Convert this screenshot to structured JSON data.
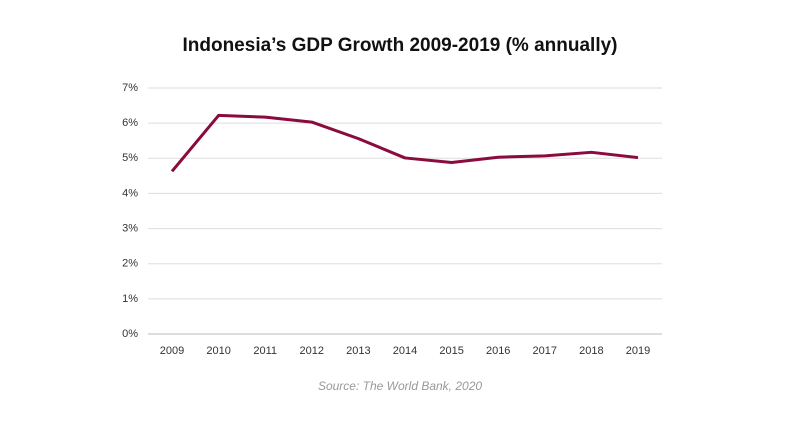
{
  "chart_data": {
    "type": "line",
    "title": "Indonesia’s GDP Growth 2009-2019 (% annually)",
    "source": "Source: The World Bank, 2020",
    "categories": [
      "2009",
      "2010",
      "2011",
      "2012",
      "2013",
      "2014",
      "2015",
      "2016",
      "2017",
      "2018",
      "2019"
    ],
    "series": [
      {
        "name": "GDP growth",
        "color": "#8a0b3d",
        "values": [
          4.63,
          6.22,
          6.17,
          6.03,
          5.56,
          5.01,
          4.88,
          5.03,
          5.07,
          5.17,
          5.02
        ]
      }
    ],
    "ylim": [
      0,
      7
    ],
    "yticks": [
      {
        "value": 0,
        "label": "0%"
      },
      {
        "value": 1,
        "label": "1%"
      },
      {
        "value": 2,
        "label": "2%"
      },
      {
        "value": 3,
        "label": "3%"
      },
      {
        "value": 4,
        "label": "4%"
      },
      {
        "value": 5,
        "label": "5%"
      },
      {
        "value": 6,
        "label": "6%"
      },
      {
        "value": 7,
        "label": "7%"
      }
    ],
    "grid": true
  }
}
